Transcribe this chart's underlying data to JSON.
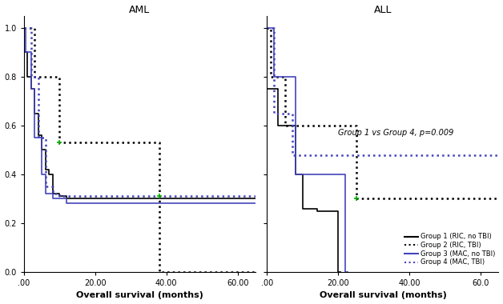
{
  "title_left": "AML",
  "title_right": "ALL",
  "xlabel": "Overall survival (months)",
  "annotation": "Group 1 vs Group 4, p=0.009",
  "aml": {
    "group1": {
      "x": [
        0,
        1,
        2,
        3,
        4,
        5,
        6,
        7,
        8,
        10,
        12,
        65
      ],
      "y": [
        0.9,
        0.8,
        0.75,
        0.65,
        0.56,
        0.5,
        0.42,
        0.4,
        0.32,
        0.31,
        0.3,
        0.3
      ],
      "color": "#000000",
      "linestyle": "solid",
      "linewidth": 1.2
    },
    "group2": {
      "x": [
        0,
        2,
        3,
        7,
        10,
        38,
        38,
        65
      ],
      "y": [
        1.0,
        1.0,
        0.8,
        0.8,
        0.53,
        0.53,
        0.0,
        0.0
      ],
      "color": "#000000",
      "linestyle": "dotted",
      "linewidth": 1.8,
      "censor_x": [
        10
      ],
      "censor_y": [
        0.53
      ]
    },
    "group3": {
      "x": [
        0,
        0.5,
        2,
        3,
        5,
        6,
        8,
        12,
        65
      ],
      "y": [
        1.0,
        0.9,
        0.75,
        0.55,
        0.4,
        0.32,
        0.3,
        0.28,
        0.28
      ],
      "color": "#4444bb",
      "linestyle": "solid",
      "linewidth": 1.2
    },
    "group4": {
      "x": [
        0,
        0.5,
        2,
        4,
        6,
        8,
        10,
        65
      ],
      "y": [
        1.0,
        1.0,
        0.8,
        0.55,
        0.35,
        0.32,
        0.31,
        0.31
      ],
      "color": "#4444bb",
      "linestyle": "dotted",
      "linewidth": 1.8,
      "censor_x": [
        38
      ],
      "censor_y": [
        0.31
      ]
    }
  },
  "all": {
    "group1": {
      "x": [
        0,
        1,
        3,
        5,
        8,
        10,
        14,
        16,
        20,
        20.5
      ],
      "y": [
        0.75,
        0.75,
        0.6,
        0.6,
        0.4,
        0.26,
        0.25,
        0.25,
        0.0,
        0.0
      ],
      "color": "#000000",
      "linestyle": "solid",
      "linewidth": 1.2
    },
    "group2": {
      "x": [
        0,
        1,
        2,
        5,
        20,
        25,
        65
      ],
      "y": [
        1.0,
        0.8,
        0.8,
        0.6,
        0.6,
        0.3,
        0.3
      ],
      "color": "#000000",
      "linestyle": "dotted",
      "linewidth": 1.8,
      "censor_x": [
        25
      ],
      "censor_y": [
        0.3
      ]
    },
    "group3": {
      "x": [
        0,
        0.5,
        2,
        5,
        8,
        15,
        20,
        22,
        22.5
      ],
      "y": [
        1.0,
        1.0,
        0.8,
        0.8,
        0.4,
        0.4,
        0.4,
        0.0,
        0.0
      ],
      "color": "#4444bb",
      "linestyle": "solid",
      "linewidth": 1.2
    },
    "group4": {
      "x": [
        0,
        0.5,
        2,
        5,
        7,
        10,
        65
      ],
      "y": [
        1.0,
        1.0,
        0.65,
        0.65,
        0.48,
        0.48,
        0.48
      ],
      "color": "#4444bb",
      "linestyle": "dotted",
      "linewidth": 1.8
    }
  },
  "aml_xlim": [
    0,
    65
  ],
  "all_xlim": [
    0,
    65
  ],
  "ylim": [
    0.0,
    1.05
  ],
  "aml_xticks": [
    0,
    20,
    40,
    60
  ],
  "aml_xtick_labels": [
    ".00",
    "20.00",
    "40.00",
    "60.00"
  ],
  "all_xticks": [
    0,
    20,
    40,
    60
  ],
  "all_xtick_labels": [
    ".00",
    "20.00",
    "40.00",
    "60.0"
  ],
  "yticks": [
    0.0,
    0.2,
    0.4,
    0.6,
    0.8,
    1.0
  ],
  "ytick_labels": [
    "0.0",
    "0.2",
    "0.4",
    "0.6",
    "0.8",
    "1.0"
  ],
  "bg_color": "#ffffff",
  "legend_labels": [
    "Group 1 (RIC, no TBI)",
    "Group 2 (RIC, TBI)",
    "Group 3 (MAC, no TBI)",
    "Group 4 (MAC, TBI)"
  ],
  "legend_colors": [
    "#000000",
    "#000000",
    "#4444bb",
    "#4444bb"
  ],
  "legend_linestyles": [
    "solid",
    "dotted",
    "solid",
    "dotted"
  ]
}
